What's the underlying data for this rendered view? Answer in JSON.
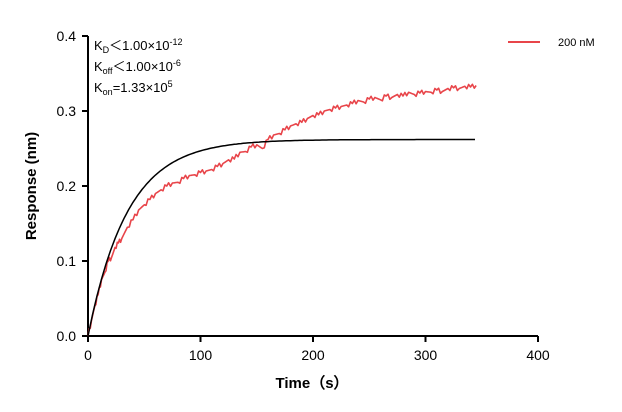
{
  "chart_data": {
    "type": "line",
    "xlabel": "Time（s）",
    "ylabel": "Response (nm)",
    "xlim": [
      0,
      400
    ],
    "ylim": [
      0,
      0.4
    ],
    "x_ticks": [
      "0",
      "100",
      "200",
      "300",
      "400"
    ],
    "y_ticks": [
      "0.0",
      "0.1",
      "0.2",
      "0.3",
      "0.4"
    ],
    "grid": false,
    "legend": {
      "position": "top-right",
      "entries": [
        "200 nM"
      ]
    },
    "annotations": {
      "kd": {
        "base": "K",
        "sub": "D",
        "rel": "＜1.00×10",
        "exp": "-12"
      },
      "koff": {
        "base": "K",
        "sub": "off",
        "rel": "＜1.00×10",
        "exp": "-6"
      },
      "kon": {
        "base": "K",
        "sub": "on",
        "rel": "=1.33×10",
        "exp": "5"
      }
    },
    "series": [
      {
        "name": "200 nM",
        "kind": "measured",
        "color": "#e8454a",
        "x": [
          0,
          3,
          6,
          9,
          12,
          15,
          18,
          21,
          24,
          27,
          30,
          35,
          40,
          45,
          50,
          55,
          60,
          65,
          70,
          75,
          80,
          85,
          90,
          95,
          100,
          105,
          110,
          115,
          120,
          125,
          130,
          135,
          140,
          145,
          150,
          155,
          160,
          165,
          170,
          175,
          180,
          185,
          190,
          195,
          200,
          205,
          210,
          215,
          220,
          225,
          230,
          235,
          240,
          245,
          250,
          255,
          260,
          265,
          270,
          275,
          280,
          285,
          290,
          295,
          300,
          305,
          310,
          315,
          320,
          325,
          330,
          335,
          340,
          345
        ],
        "y": [
          0.0,
          0.02,
          0.04,
          0.055,
          0.075,
          0.085,
          0.1,
          0.105,
          0.118,
          0.124,
          0.13,
          0.145,
          0.155,
          0.168,
          0.175,
          0.182,
          0.19,
          0.195,
          0.2,
          0.204,
          0.205,
          0.21,
          0.214,
          0.215,
          0.218,
          0.22,
          0.222,
          0.226,
          0.23,
          0.235,
          0.236,
          0.245,
          0.246,
          0.252,
          0.255,
          0.25,
          0.262,
          0.268,
          0.27,
          0.275,
          0.28,
          0.283,
          0.285,
          0.29,
          0.294,
          0.295,
          0.3,
          0.302,
          0.304,
          0.306,
          0.308,
          0.31,
          0.314,
          0.312,
          0.316,
          0.318,
          0.315,
          0.32,
          0.318,
          0.322,
          0.32,
          0.325,
          0.322,
          0.324,
          0.326,
          0.325,
          0.328,
          0.326,
          0.33,
          0.331,
          0.33,
          0.333,
          0.332,
          0.334
        ]
      },
      {
        "name": "",
        "kind": "fit",
        "color": "#000000",
        "model": {
          "plateau": 0.262,
          "k": 0.0285,
          "x_end": 345
        }
      }
    ]
  }
}
